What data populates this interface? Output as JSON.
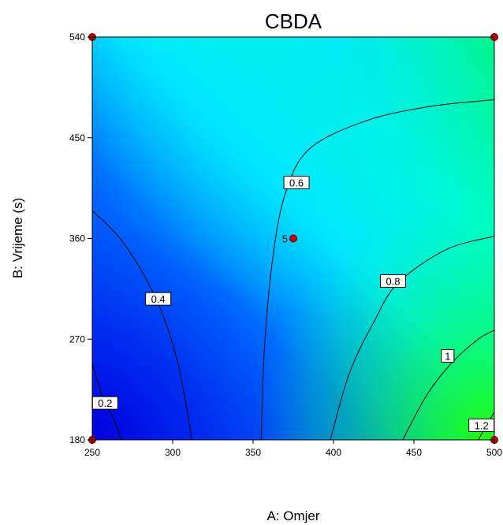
{
  "chart_data": {
    "type": "contour",
    "title": "CBDA",
    "xlabel": "A: Omjer",
    "ylabel": "B: Vrijeme (s)",
    "xlim": [
      250,
      500
    ],
    "ylim": [
      180,
      540
    ],
    "xticks": [
      "250",
      "300",
      "350",
      "400",
      "450",
      "500"
    ],
    "yticks": [
      "180",
      "270",
      "360",
      "450",
      "540"
    ],
    "colorscale": [
      "#0000ff",
      "#00ffff",
      "#00ff00"
    ],
    "contours": [
      {
        "level": "0.2",
        "points": [
          [
            250,
            248
          ],
          [
            257,
            216
          ],
          [
            263,
            200
          ],
          [
            268,
            180
          ]
        ]
      },
      {
        "level": "0.4",
        "points": [
          [
            250,
            385
          ],
          [
            270,
            355
          ],
          [
            290,
            305
          ],
          [
            303,
            250
          ],
          [
            312,
            180
          ]
        ]
      },
      {
        "level": "0.6",
        "points": [
          [
            355,
            180
          ],
          [
            357,
            260
          ],
          [
            362,
            340
          ],
          [
            370,
            400
          ],
          [
            385,
            440
          ],
          [
            420,
            465
          ],
          [
            460,
            478
          ],
          [
            500,
            484
          ]
        ]
      },
      {
        "level": "0.8",
        "points": [
          [
            398,
            180
          ],
          [
            410,
            240
          ],
          [
            425,
            285
          ],
          [
            440,
            320
          ],
          [
            470,
            350
          ],
          [
            500,
            362
          ]
        ]
      },
      {
        "level": "1",
        "points": [
          [
            443,
            180
          ],
          [
            458,
            220
          ],
          [
            473,
            248
          ],
          [
            490,
            270
          ],
          [
            500,
            278
          ]
        ]
      },
      {
        "level": "1.2",
        "points": [
          [
            490,
            180
          ],
          [
            494,
            190
          ],
          [
            500,
            205
          ]
        ]
      }
    ],
    "contour_labels": [
      {
        "text": "0.2",
        "x": 258,
        "y": 213
      },
      {
        "text": "0.4",
        "x": 291,
        "y": 306
      },
      {
        "text": "0.6",
        "x": 377,
        "y": 410
      },
      {
        "text": "0.8",
        "x": 437,
        "y": 322
      },
      {
        "text": "1",
        "x": 471,
        "y": 255
      },
      {
        "text": "1.2",
        "x": 492,
        "y": 193
      }
    ],
    "design_points": [
      {
        "x": 250,
        "y": 540,
        "label": ""
      },
      {
        "x": 500,
        "y": 540,
        "label": ""
      },
      {
        "x": 250,
        "y": 180,
        "label": ""
      },
      {
        "x": 500,
        "y": 180,
        "label": ""
      },
      {
        "x": 375,
        "y": 360,
        "label": "5"
      }
    ]
  }
}
